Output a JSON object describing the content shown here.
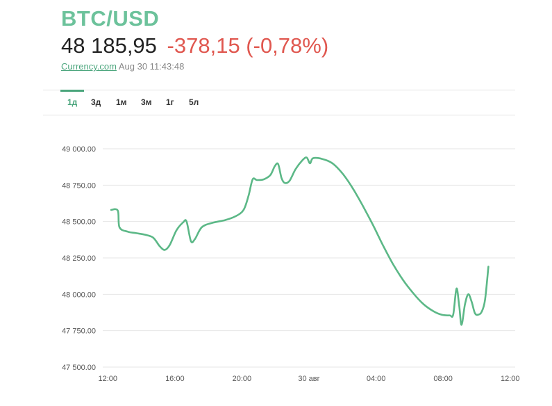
{
  "header": {
    "pair": "BTC/USD",
    "price": "48 185,95",
    "change": "-378,15 (-0,78%)",
    "source": "Currency.com",
    "timestamp": "Aug 30 11:43:48"
  },
  "tabs": [
    {
      "label": "1д",
      "active": true
    },
    {
      "label": "3д",
      "active": false
    },
    {
      "label": "1м",
      "active": false
    },
    {
      "label": "3м",
      "active": false
    },
    {
      "label": "1г",
      "active": false
    },
    {
      "label": "5л",
      "active": false
    }
  ],
  "colors": {
    "line": "#5cb887",
    "up": "#6cc29b",
    "down": "#e0574f",
    "grid": "#e6e6e6"
  },
  "chart_data": {
    "type": "line",
    "title": "BTC/USD",
    "xlabel": "",
    "ylabel": "",
    "ylim": [
      47500,
      49000
    ],
    "xlim": [
      11.85,
      24.15
    ],
    "grid": true,
    "y_ticks": [
      49000,
      48750,
      48500,
      48250,
      48000,
      47750,
      47500
    ],
    "y_tick_labels": [
      "49 000.00",
      "48 750.00",
      "48 500.00",
      "48 250.00",
      "48 000.00",
      "47 750.00",
      "47 500.00"
    ],
    "x_ticks": [
      12,
      14,
      16,
      18,
      20,
      22,
      24
    ],
    "x_tick_labels": [
      "12:00",
      "16:00",
      "20:00",
      "30 авг",
      "04:00",
      "08:00",
      "12:00"
    ],
    "series": [
      {
        "name": "BTC/USD",
        "points": [
          [
            12.1,
            48580
          ],
          [
            12.3,
            48575
          ],
          [
            12.35,
            48460
          ],
          [
            12.6,
            48430
          ],
          [
            12.85,
            48420
          ],
          [
            13.1,
            48410
          ],
          [
            13.35,
            48390
          ],
          [
            13.55,
            48330
          ],
          [
            13.7,
            48305
          ],
          [
            13.85,
            48340
          ],
          [
            14.05,
            48440
          ],
          [
            14.25,
            48495
          ],
          [
            14.35,
            48500
          ],
          [
            14.48,
            48365
          ],
          [
            14.6,
            48380
          ],
          [
            14.8,
            48460
          ],
          [
            15.1,
            48490
          ],
          [
            15.5,
            48510
          ],
          [
            15.8,
            48535
          ],
          [
            16.05,
            48580
          ],
          [
            16.2,
            48680
          ],
          [
            16.32,
            48790
          ],
          [
            16.45,
            48785
          ],
          [
            16.65,
            48790
          ],
          [
            16.85,
            48820
          ],
          [
            16.98,
            48880
          ],
          [
            17.08,
            48895
          ],
          [
            17.18,
            48800
          ],
          [
            17.28,
            48765
          ],
          [
            17.42,
            48780
          ],
          [
            17.6,
            48860
          ],
          [
            17.8,
            48920
          ],
          [
            17.93,
            48940
          ],
          [
            18.03,
            48900
          ],
          [
            18.12,
            48935
          ],
          [
            18.4,
            48930
          ],
          [
            18.7,
            48900
          ],
          [
            19.0,
            48830
          ],
          [
            19.3,
            48730
          ],
          [
            19.6,
            48610
          ],
          [
            19.9,
            48480
          ],
          [
            20.2,
            48340
          ],
          [
            20.5,
            48210
          ],
          [
            20.8,
            48100
          ],
          [
            21.1,
            48010
          ],
          [
            21.4,
            47935
          ],
          [
            21.7,
            47885
          ],
          [
            21.95,
            47860
          ],
          [
            22.2,
            47855
          ],
          [
            22.3,
            47860
          ],
          [
            22.4,
            48040
          ],
          [
            22.48,
            47920
          ],
          [
            22.55,
            47790
          ],
          [
            22.65,
            47930
          ],
          [
            22.75,
            48000
          ],
          [
            22.85,
            47950
          ],
          [
            22.95,
            47870
          ],
          [
            23.05,
            47860
          ],
          [
            23.15,
            47880
          ],
          [
            23.25,
            47960
          ],
          [
            23.35,
            48190
          ]
        ]
      }
    ]
  }
}
